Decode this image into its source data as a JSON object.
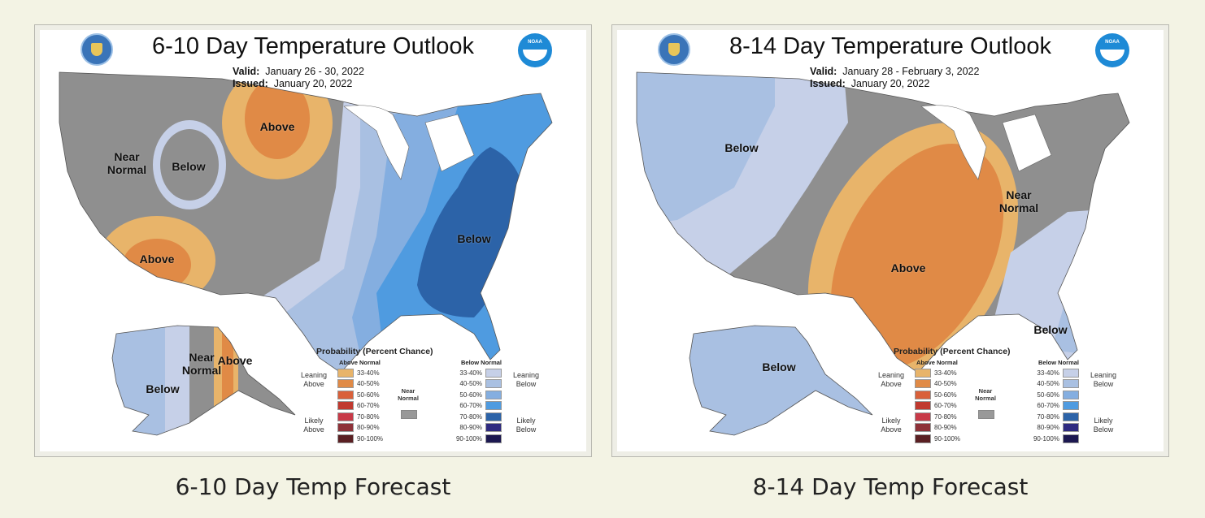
{
  "panels": [
    {
      "title": "6-10 Day Temperature Outlook",
      "valid_label": "Valid:",
      "valid": "January 26 - 30, 2022",
      "issued_label": "Issued:",
      "issued": "January 20, 2022",
      "noaa": "NOAA",
      "caption": "6-10 Day Temp Forecast",
      "map_labels": [
        "Above",
        "Near Normal",
        "Below",
        "Above",
        "Below",
        "Below",
        "Near Normal",
        "Above"
      ]
    },
    {
      "title": "8-14 Day Temperature Outlook",
      "valid_label": "Valid:",
      "valid": "January 28 - February 3, 2022",
      "issued_label": "Issued:",
      "issued": "January 20, 2022",
      "noaa": "NOAA",
      "caption": "8-14 Day Temp Forecast",
      "map_labels": [
        "Below",
        "Near Normal",
        "Above",
        "Below",
        "Below"
      ]
    }
  ],
  "legend": {
    "title": "Probability (Percent Chance)",
    "above_header": "Above Normal",
    "below_header": "Below Normal",
    "near_normal": "Near Normal",
    "leaning_above": "Leaning Above",
    "likely_above": "Likely Above",
    "leaning_below": "Leaning Below",
    "likely_below": "Likely Below",
    "ranges": [
      "33-40%",
      "40-50%",
      "50-60%",
      "60-70%",
      "70-80%",
      "80-90%",
      "90-100%"
    ],
    "above_colors": [
      "#e8b46a",
      "#e08a46",
      "#d9603a",
      "#c0392f",
      "#c83a48",
      "#8e3138",
      "#5a1f22"
    ],
    "below_colors": [
      "#c6d0e8",
      "#a9c0e2",
      "#84aee0",
      "#4f9be0",
      "#2c63a8",
      "#2e2a80",
      "#1c1850"
    ],
    "near_color": "#999999"
  },
  "colors": {
    "background": "#f3f3e4",
    "near_normal": "#8f8f8f"
  }
}
